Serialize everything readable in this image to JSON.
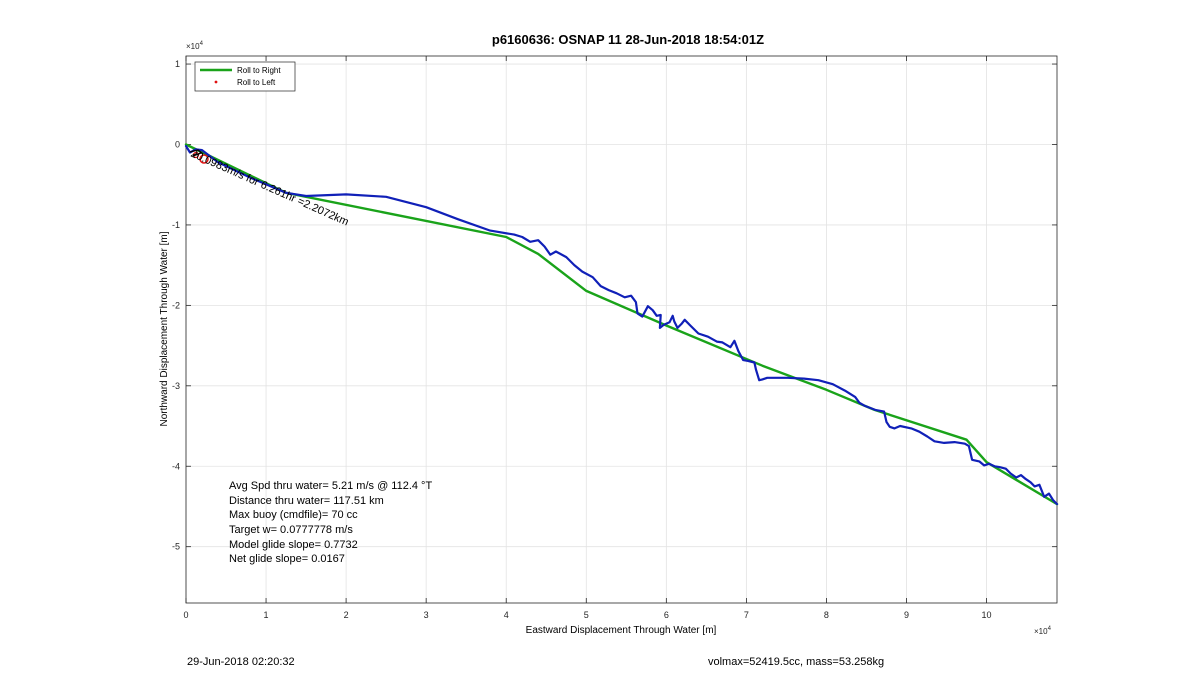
{
  "chart_data": {
    "type": "line",
    "title": "p6160636: OSNAP 11 28-Jun-2018 18:54:01Z",
    "xlabel": "Eastward Displacement Through Water [m]",
    "ylabel": "Northward Displacement Through Water [m]",
    "x_exponent_label": "×10",
    "x_exponent": "4",
    "y_exponent_label": "×10",
    "y_exponent": "4",
    "xlim": [
      0,
      108800
    ],
    "ylim": [
      -57000,
      11000
    ],
    "xticks": [
      0,
      10000,
      20000,
      30000,
      40000,
      50000,
      60000,
      70000,
      80000,
      90000,
      100000
    ],
    "xtick_labels": [
      "0",
      "1",
      "2",
      "3",
      "4",
      "5",
      "6",
      "7",
      "8",
      "9",
      "10"
    ],
    "yticks": [
      10000,
      0,
      -10000,
      -20000,
      -30000,
      -40000,
      -50000
    ],
    "ytick_labels": [
      "1",
      "0",
      "-1",
      "-2",
      "-3",
      "-4",
      "-5"
    ],
    "grid": true,
    "legend_placement": "top-left",
    "legend": [
      {
        "label": "Roll to Right",
        "color": "#1aa31a",
        "marker": "line"
      },
      {
        "label": "Roll to Left",
        "color": "#e01010",
        "marker": "dot"
      }
    ],
    "series": [
      {
        "name": "Roll to Right",
        "color": "#1aa31a",
        "x": [
          0,
          12500,
          40000,
          44000,
          50000,
          60000,
          72000,
          80000,
          86000,
          97500,
          100000,
          108800
        ],
        "y": [
          0,
          -6000,
          -11500,
          -13600,
          -18200,
          -22500,
          -27500,
          -30500,
          -33000,
          -36700,
          -39500,
          -44700
        ]
      },
      {
        "name": "",
        "color": "#1020b8",
        "x": [
          0,
          500,
          1200,
          2000,
          4000,
          8000,
          12500,
          15000,
          20000,
          25000,
          30000,
          34000,
          38000,
          41000,
          42000,
          43000,
          44000,
          44800,
          45500,
          46200,
          47500,
          48500,
          49500,
          50800,
          51800,
          52800,
          53800,
          54800,
          55600,
          56200,
          56400,
          57000,
          57700,
          58300,
          58800,
          59300,
          59200,
          59700,
          60400,
          60800,
          61000,
          61400,
          61900,
          62300,
          63000,
          64000,
          65200,
          66300,
          67000,
          68000,
          68500,
          69000,
          69600,
          70200,
          71000,
          71200,
          71600,
          72000,
          72600,
          73800,
          75200,
          77200,
          79000,
          80800,
          82300,
          83600,
          84100,
          84800,
          86100,
          87200,
          87500,
          87900,
          88500,
          89200,
          90600,
          91600,
          92600,
          93500,
          94700,
          96000,
          97300,
          97800,
          98200,
          99100,
          99700,
          100300,
          101000,
          101600,
          102400,
          103000,
          103700,
          104300,
          104900,
          105500,
          106000,
          106600,
          107200,
          107800,
          108300,
          108800
        ],
        "y": [
          -200,
          -1000,
          -600,
          -700,
          -2200,
          -4100,
          -6000,
          -6400,
          -6200,
          -6500,
          -7800,
          -9300,
          -10700,
          -11200,
          -11500,
          -12100,
          -11900,
          -12700,
          -13700,
          -13300,
          -14000,
          -15000,
          -15800,
          -16500,
          -17600,
          -18100,
          -18500,
          -19000,
          -18800,
          -19600,
          -21000,
          -21400,
          -20100,
          -20600,
          -21300,
          -21200,
          -22800,
          -22400,
          -22100,
          -21300,
          -22000,
          -22800,
          -22300,
          -21800,
          -22500,
          -23500,
          -23900,
          -24500,
          -24600,
          -25200,
          -24400,
          -25700,
          -26800,
          -26900,
          -27100,
          -28000,
          -29300,
          -29200,
          -29000,
          -29000,
          -29000,
          -29100,
          -29300,
          -29800,
          -30600,
          -31400,
          -32100,
          -32500,
          -33000,
          -33200,
          -34500,
          -35100,
          -35300,
          -35000,
          -35300,
          -35700,
          -36300,
          -36900,
          -37100,
          -37000,
          -37200,
          -37500,
          -39200,
          -39400,
          -39900,
          -39700,
          -40000,
          -40100,
          -40300,
          -40900,
          -41400,
          -41100,
          -41600,
          -42000,
          -42500,
          -42300,
          -43800,
          -43400,
          -44200,
          -44700
        ]
      }
    ],
    "path_annotation": "20.0983m/s for 6.261hr =2.2072km",
    "stats": [
      "Avg Spd thru water=  5.21 m/s @ 112.4 °T",
      "Distance thru water= 117.51 km",
      "Max buoy (cmdfile)= 70 cc",
      "Target w= 0.0777778 m/s",
      "Model glide slope= 0.7732",
      "Net glide slope= 0.0167"
    ]
  },
  "footer": {
    "date": "29-Jun-2018 02:20:32",
    "info": "volmax=52419.5cc, mass=53.258kg"
  }
}
